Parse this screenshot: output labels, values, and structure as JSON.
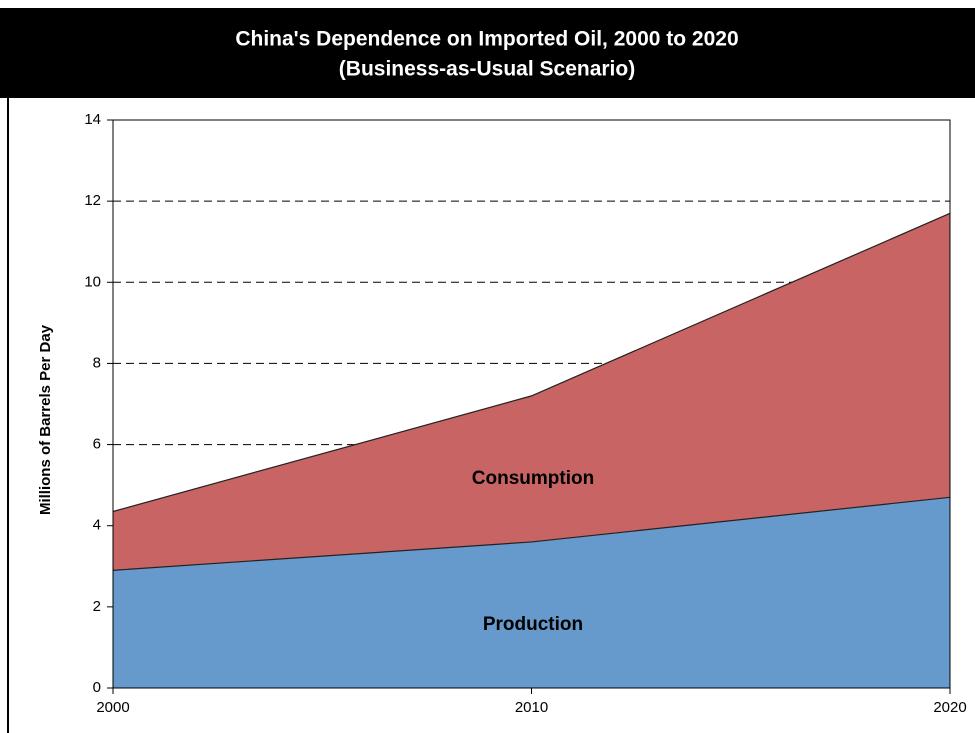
{
  "chart_data": {
    "type": "area",
    "title": "China's Dependence on Imported Oil, 2000 to 2020",
    "subtitle": "(Business-as-Usual Scenario)",
    "y_label": "Millions of Barrels Per Day",
    "x": [
      2000,
      2010,
      2020
    ],
    "series": [
      {
        "name": "Consumption",
        "color": "#c86464",
        "values": [
          4.35,
          7.2,
          11.7
        ]
      },
      {
        "name": "Production",
        "color": "#6699cc",
        "values": [
          2.9,
          3.6,
          4.7
        ]
      }
    ],
    "xlim": [
      2000,
      2020
    ],
    "xticks": [
      2000,
      2010,
      2020
    ],
    "ylim": [
      0,
      14
    ],
    "yticks": [
      0,
      2,
      4,
      6,
      8,
      10,
      12,
      14
    ],
    "grid": true
  }
}
